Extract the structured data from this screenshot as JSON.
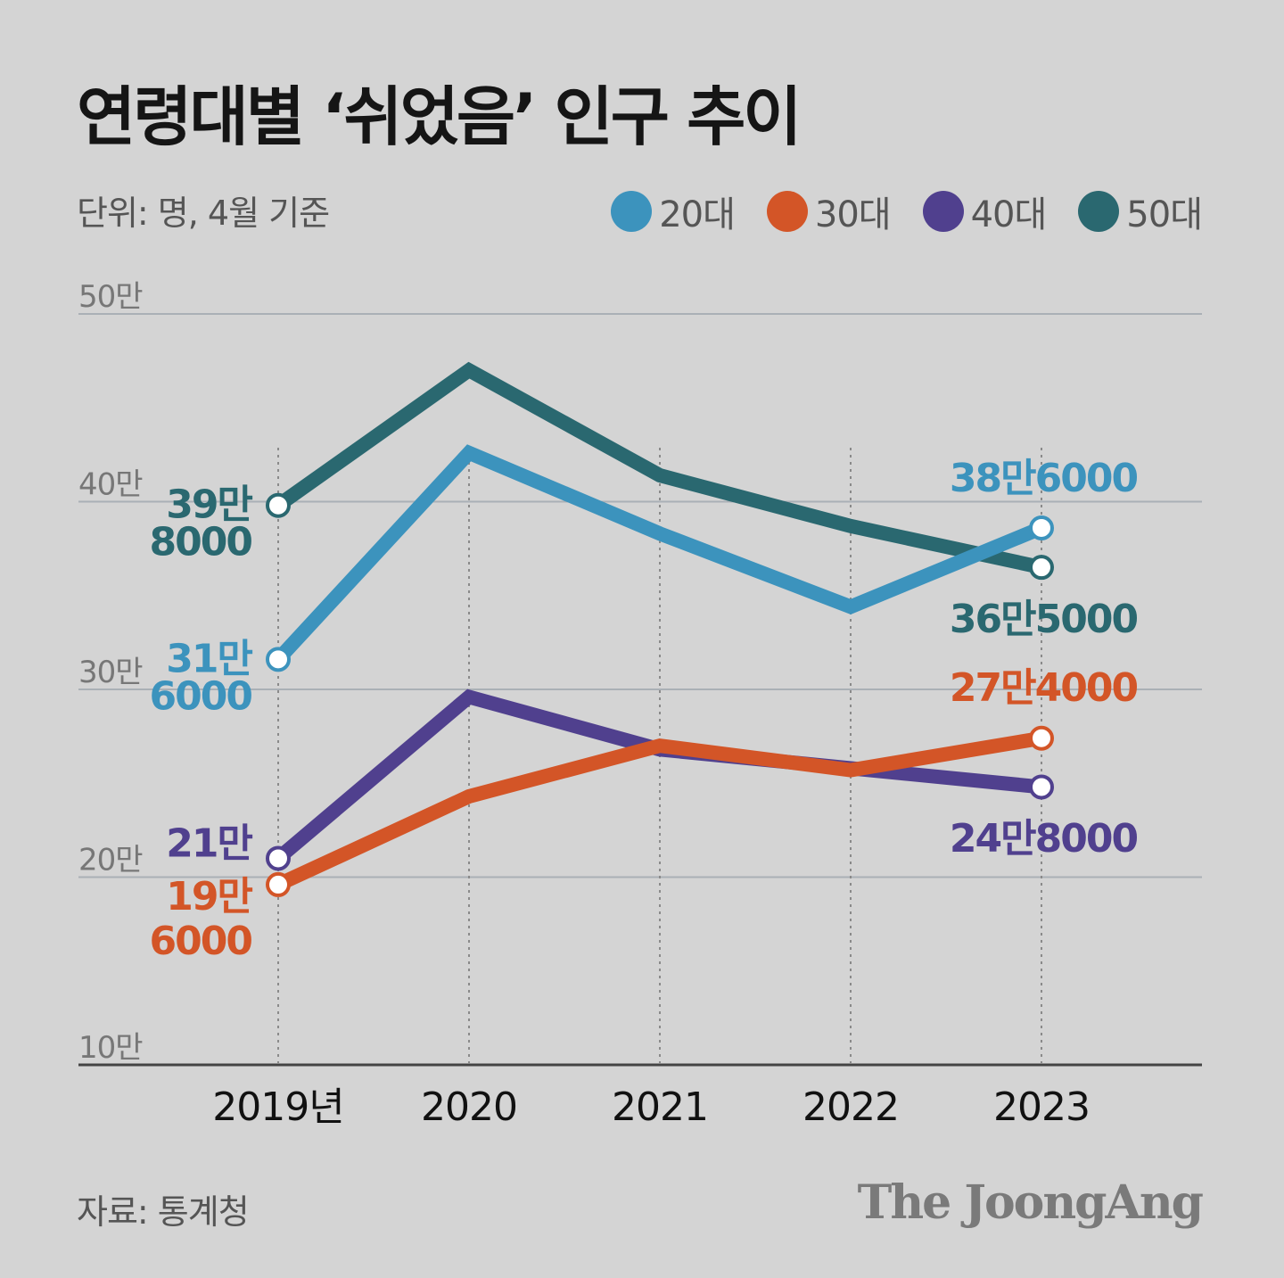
{
  "header": {
    "title": "연령대별 ‘쉬었음’ 인구 추이",
    "unit": "단위: 명, 4월 기준"
  },
  "footer": {
    "source": "자료: 통계청",
    "brand": "The JoongAng"
  },
  "chart_data": {
    "type": "line",
    "title": "연령대별 ‘쉬었음’ 인구 추이",
    "categories": [
      "2019년",
      "2020",
      "2021",
      "2022",
      "2023"
    ],
    "ylim": [
      100000,
      500000
    ],
    "yticks": [
      {
        "value": 500000,
        "label": "50만"
      },
      {
        "value": 400000,
        "label": "40만"
      },
      {
        "value": 300000,
        "label": "30만"
      },
      {
        "value": 200000,
        "label": "20만"
      },
      {
        "value": 100000,
        "label": "10만"
      }
    ],
    "legend_position": "top-right",
    "series": [
      {
        "id": "s50",
        "name": "50대",
        "color": "#2a6870",
        "values": [
          398000,
          470000,
          414000,
          387000,
          365000
        ],
        "start_label": [
          "39만",
          "8000"
        ],
        "end_label": "36만5000"
      },
      {
        "id": "s20",
        "name": "20대",
        "color": "#3c93bd",
        "values": [
          316000,
          426000,
          383000,
          344000,
          386000
        ],
        "start_label": [
          "31만",
          "6000"
        ],
        "end_label": "38만6000"
      },
      {
        "id": "s40",
        "name": "40대",
        "color": "#50408e",
        "values": [
          210000,
          296000,
          268000,
          258000,
          248000
        ],
        "start_label": [
          "21만"
        ],
        "end_label": "24만8000"
      },
      {
        "id": "s30",
        "name": "30대",
        "color": "#d35527",
        "values": [
          196000,
          243000,
          270000,
          257000,
          274000
        ],
        "start_label": [
          "19만",
          "6000"
        ],
        "end_label": "27만4000"
      }
    ],
    "legend": [
      {
        "name": "20대",
        "color": "#3c93bd"
      },
      {
        "name": "30대",
        "color": "#d35527"
      },
      {
        "name": "40대",
        "color": "#50408e"
      },
      {
        "name": "50대",
        "color": "#2a6870"
      }
    ]
  }
}
